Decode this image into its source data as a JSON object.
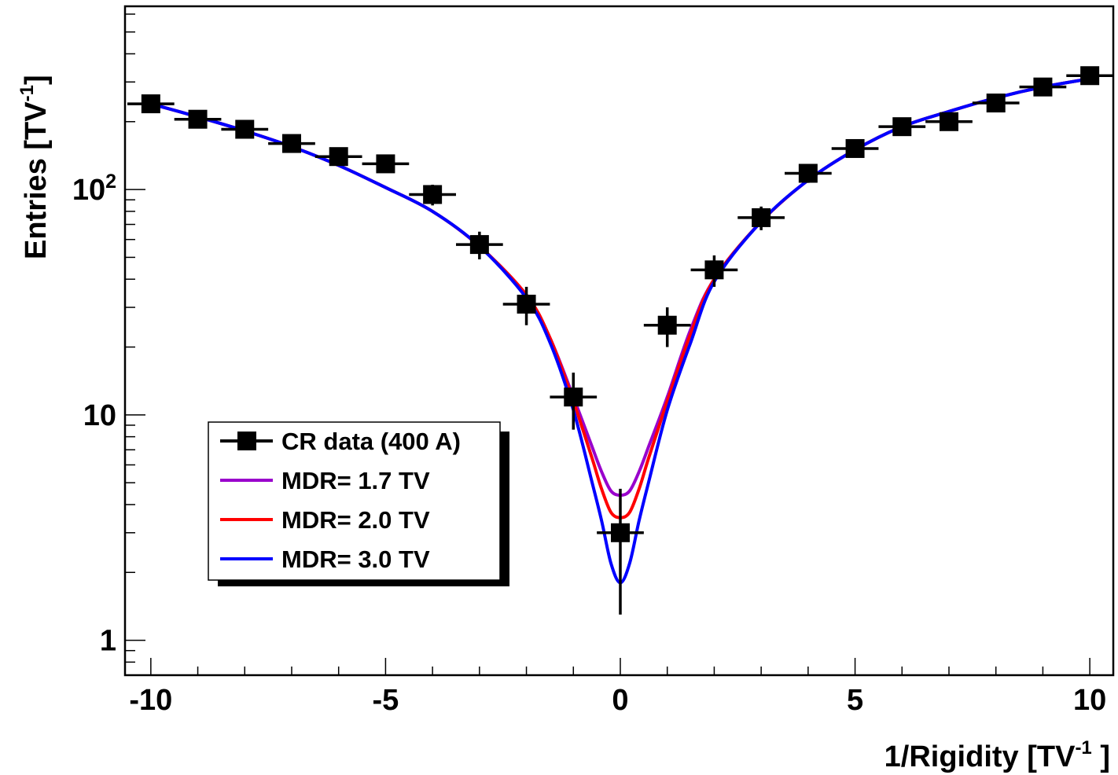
{
  "chart_data": {
    "type": "scatter",
    "title": "",
    "xlabel": {
      "main": "1/Rigidity [TV",
      "sup": "-1",
      "tail": " ]"
    },
    "ylabel": {
      "main": "Entries [TV",
      "sup": "-1",
      "tail": "]"
    },
    "x_ticks": [
      "-10",
      "-5",
      "0",
      "5",
      "10"
    ],
    "y_ticks": [
      {
        "value": 1,
        "base": "1",
        "sup": ""
      },
      {
        "value": 10,
        "base": "10",
        "sup": ""
      },
      {
        "value": 100,
        "base": "10",
        "sup": "2"
      }
    ],
    "xlim": [
      -10.55,
      10.5
    ],
    "ylim": [
      0.7,
      650
    ],
    "y_scale": "log",
    "grid": false,
    "legend": {
      "position": "bottom-left",
      "entries": [
        {
          "label": "CR data (400 A)",
          "color": "#000000",
          "style": "marker"
        },
        {
          "label": "MDR= 1.7 TV",
          "color": "#9900cc",
          "style": "line"
        },
        {
          "label": "MDR= 2.0 TV",
          "color": "#ff0000",
          "style": "line"
        },
        {
          "label": "MDR= 3.0 TV",
          "color": "#0000ff",
          "style": "line"
        }
      ]
    },
    "series": [
      {
        "name": "CR data (400 A)",
        "type": "points",
        "color": "#000000",
        "x": [
          -10,
          -9,
          -8,
          -7,
          -6,
          -5,
          -4,
          -3,
          -2,
          -1,
          0,
          1,
          2,
          3,
          4,
          5,
          6,
          7,
          8,
          9,
          10
        ],
        "y": [
          240,
          205,
          185,
          160,
          140,
          130,
          95,
          57,
          31,
          12,
          3.0,
          25,
          44,
          75,
          118,
          152,
          190,
          200,
          242,
          285,
          320
        ],
        "y_err": [
          16,
          14,
          14,
          13,
          12,
          11,
          10,
          8,
          6,
          3.4,
          1.7,
          5,
          7,
          9,
          11,
          12,
          14,
          14,
          16,
          17,
          18
        ],
        "x_err": [
          0.5,
          0.5,
          0.5,
          0.5,
          0.5,
          0.5,
          0.5,
          0.5,
          0.5,
          0.5,
          0.5,
          0.5,
          0.5,
          0.5,
          0.5,
          0.5,
          0.5,
          0.5,
          0.5,
          0.5,
          0.5
        ]
      },
      {
        "name": "MDR= 1.7 TV",
        "type": "line",
        "color": "#9900cc",
        "x": [
          -10,
          -9,
          -8,
          -7,
          -6,
          -5,
          -4,
          -3,
          -2,
          -1.5,
          -1,
          -0.6,
          -0.4,
          -0.2,
          0,
          0.2,
          0.4,
          0.6,
          1,
          1.5,
          2,
          3,
          4,
          5,
          6,
          7,
          8,
          9,
          10
        ],
        "y": [
          240,
          210,
          182,
          155,
          128,
          102,
          80,
          56,
          34,
          22,
          12,
          7.2,
          5.6,
          4.6,
          4.4,
          4.6,
          5.6,
          7.2,
          12,
          24,
          40,
          72,
          110,
          150,
          190,
          222,
          255,
          285,
          310
        ]
      },
      {
        "name": "MDR= 2.0 TV",
        "type": "line",
        "color": "#ff0000",
        "x": [
          -10,
          -9,
          -8,
          -7,
          -6,
          -5,
          -4,
          -3,
          -2,
          -1.5,
          -1,
          -0.6,
          -0.4,
          -0.2,
          0,
          0.2,
          0.4,
          0.6,
          1,
          1.5,
          2,
          3,
          4,
          5,
          6,
          7,
          8,
          9,
          10
        ],
        "y": [
          240,
          210,
          182,
          155,
          128,
          102,
          80,
          56,
          34,
          22,
          11.5,
          6.4,
          4.7,
          3.7,
          3.5,
          3.7,
          4.7,
          6.4,
          11.5,
          23,
          40,
          72,
          110,
          150,
          190,
          222,
          255,
          285,
          310
        ]
      },
      {
        "name": "MDR= 3.0 TV",
        "type": "line",
        "color": "#0000ff",
        "x": [
          -10,
          -9,
          -8,
          -7,
          -6,
          -5,
          -4,
          -3,
          -2,
          -1.5,
          -1,
          -0.6,
          -0.4,
          -0.2,
          0,
          0.2,
          0.4,
          0.6,
          1,
          1.5,
          2,
          3,
          4,
          5,
          6,
          7,
          8,
          9,
          10
        ],
        "y": [
          240,
          210,
          182,
          155,
          128,
          102,
          80,
          56,
          33,
          21,
          10.5,
          5.0,
          3.4,
          2.2,
          1.8,
          2.2,
          3.4,
          5.0,
          10.5,
          21,
          39,
          72,
          110,
          150,
          190,
          222,
          255,
          285,
          310
        ]
      }
    ]
  }
}
